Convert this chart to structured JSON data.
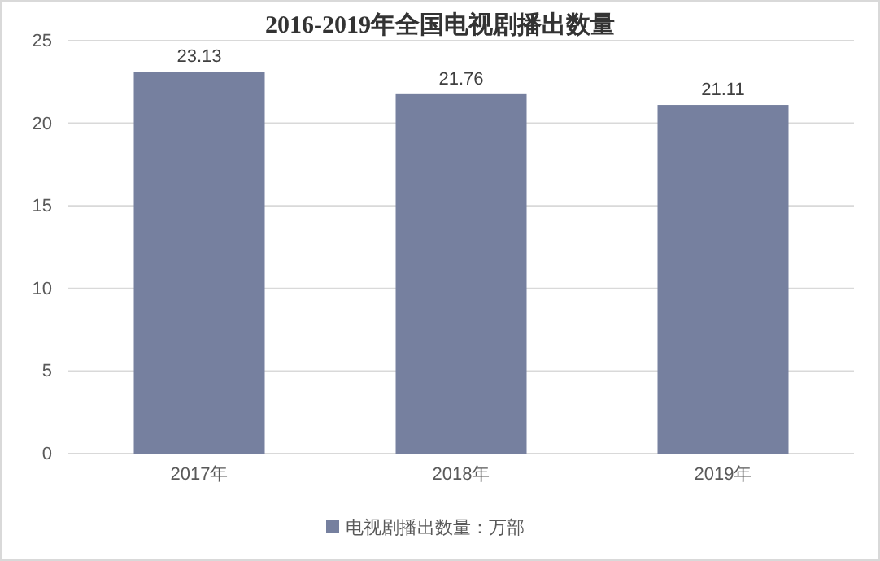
{
  "chart_data": {
    "type": "bar",
    "title": "2016-2019年全国电视剧播出数量",
    "categories": [
      "2017年",
      "2018年",
      "2019年"
    ],
    "series": [
      {
        "name": "电视剧播出数量：万部",
        "color": "#76809f",
        "values": [
          23.13,
          21.76,
          21.11
        ]
      }
    ],
    "ylim": [
      0,
      25
    ],
    "yticks": [
      0,
      5,
      10,
      15,
      20,
      25
    ],
    "grid": "y",
    "legend": "bottom",
    "data_labels": true
  }
}
